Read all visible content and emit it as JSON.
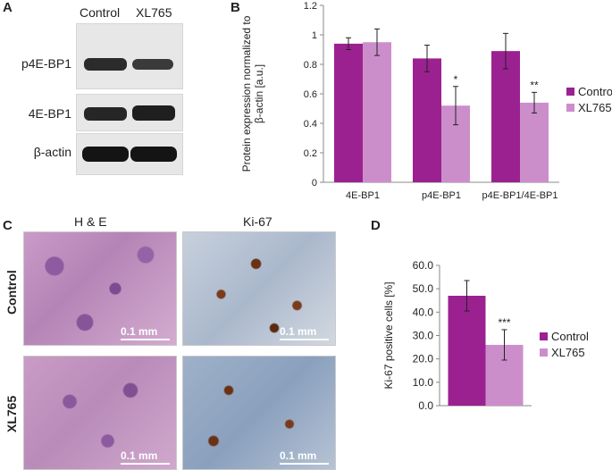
{
  "panels": {
    "a": "A",
    "b": "B",
    "c": "C",
    "d": "D"
  },
  "western_blot": {
    "columns": [
      "Control",
      "XL765"
    ],
    "rows": [
      "p4E-BP1",
      "4E-BP1",
      "β-actin"
    ]
  },
  "histology": {
    "columns": [
      "H & E",
      "Ki-67"
    ],
    "rows": [
      "Control",
      "XL765"
    ],
    "scale_bar": "0.1 mm"
  },
  "colors": {
    "control": "#9B2191",
    "xl765": "#CC8ECB"
  },
  "chart_data": [
    {
      "type": "bar",
      "ylabel": "Protein expression normalized to β-actin [a.u.]",
      "categories": [
        "4E-BP1",
        "p4E-BP1",
        "p4E-BP1/4E-BP1"
      ],
      "series": [
        {
          "name": "Control",
          "values": [
            0.94,
            0.84,
            0.89
          ],
          "errors": [
            0.04,
            0.09,
            0.12
          ]
        },
        {
          "name": "XL765",
          "values": [
            0.95,
            0.52,
            0.54
          ],
          "errors": [
            0.09,
            0.13,
            0.07
          ]
        }
      ],
      "annotations": [
        {
          "category": "p4E-BP1",
          "series": "XL765",
          "text": "*"
        },
        {
          "category": "p4E-BP1/4E-BP1",
          "series": "XL765",
          "text": "**"
        }
      ],
      "ylim": [
        0,
        1.2
      ],
      "yticks": [
        "0",
        "0.2",
        "0.4",
        "0.6",
        "0.8",
        "1",
        "1.2"
      ],
      "legend": "right"
    },
    {
      "type": "bar",
      "ylabel": "Ki-67 positive cells [%]",
      "categories": [
        ""
      ],
      "series": [
        {
          "name": "Control",
          "values": [
            47.0
          ],
          "errors": [
            6.5
          ]
        },
        {
          "name": "XL765",
          "values": [
            26.0
          ],
          "errors": [
            6.5
          ]
        }
      ],
      "annotations": [
        {
          "category": "",
          "series": "XL765",
          "text": "***"
        }
      ],
      "ylim": [
        0,
        60
      ],
      "yticks": [
        "0.0",
        "10.0",
        "20.0",
        "30.0",
        "40.0",
        "50.0",
        "60.0"
      ],
      "legend": "right"
    }
  ]
}
